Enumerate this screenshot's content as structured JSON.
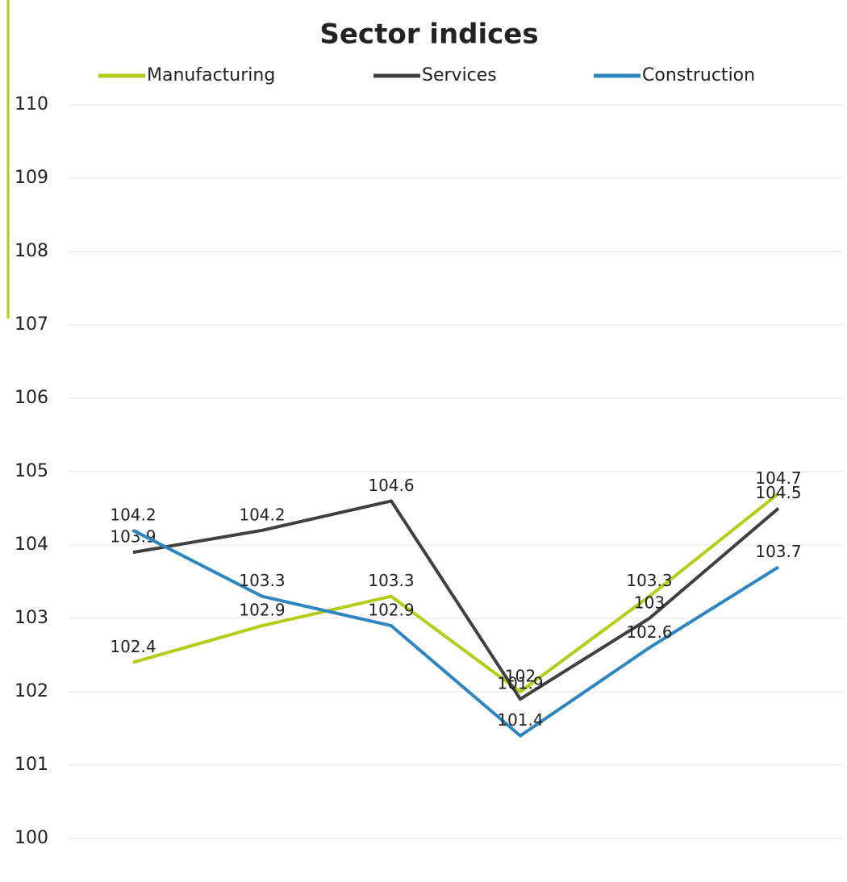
{
  "chart_data": {
    "type": "line",
    "title": "Sector indices",
    "categories": [
      null,
      null,
      null,
      null,
      null,
      null
    ],
    "series": [
      {
        "name": "Manufacturing",
        "color": "#b5cc18",
        "values": [
          102.4,
          102.9,
          103.3,
          102.0,
          103.3,
          104.7
        ]
      },
      {
        "name": "Services",
        "color": "#404040",
        "values": [
          103.9,
          104.2,
          104.6,
          101.9,
          103.0,
          104.5
        ]
      },
      {
        "name": "Construction",
        "color": "#2e86c1",
        "values": [
          104.2,
          103.3,
          102.9,
          101.4,
          102.6,
          103.7
        ]
      }
    ],
    "ylim": [
      100,
      110
    ],
    "yticks": [
      100,
      101,
      102,
      103,
      104,
      105,
      106,
      107,
      108,
      109,
      110
    ],
    "grid": true
  }
}
